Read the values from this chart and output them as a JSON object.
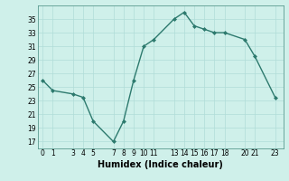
{
  "x": [
    0,
    1,
    3,
    4,
    5,
    7,
    8,
    9,
    10,
    11,
    13,
    14,
    15,
    16,
    17,
    18,
    20,
    21,
    23
  ],
  "y": [
    26,
    24.5,
    24,
    23.5,
    20,
    17,
    20,
    26,
    31,
    32,
    35,
    36,
    34,
    33.5,
    33,
    33,
    32,
    29.5,
    23.5
  ],
  "line_color": "#2d7a6e",
  "marker": "D",
  "marker_size": 2.0,
  "bg_color": "#cff0ea",
  "grid_color": "#b0ddd8",
  "xlabel": "Humidex (Indice chaleur)",
  "xlim": [
    -0.5,
    23.8
  ],
  "ylim": [
    16,
    37
  ],
  "yticks": [
    17,
    19,
    21,
    23,
    25,
    27,
    29,
    31,
    33,
    35
  ],
  "xticks": [
    0,
    1,
    3,
    4,
    5,
    7,
    8,
    9,
    10,
    11,
    13,
    14,
    15,
    16,
    17,
    18,
    20,
    21,
    23
  ],
  "tick_fontsize": 5.5,
  "xlabel_fontsize": 7.0,
  "line_width": 1.0
}
